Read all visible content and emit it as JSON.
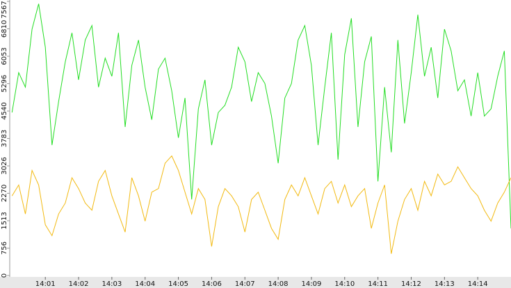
{
  "chart_data": {
    "type": "line",
    "x": [
      0,
      0.2,
      0.4,
      0.6,
      0.8,
      1,
      1.2,
      1.4,
      1.6,
      1.8,
      2,
      2.2,
      2.4,
      2.6,
      2.8,
      3,
      3.2,
      3.4,
      3.6,
      3.8,
      4,
      4.2,
      4.4,
      4.6,
      4.8,
      5,
      5.2,
      5.4,
      5.6,
      5.8,
      6,
      6.2,
      6.4,
      6.6,
      6.8,
      7,
      7.2,
      7.4,
      7.6,
      7.8,
      8,
      8.2,
      8.4,
      8.6,
      8.8,
      9,
      9.2,
      9.4,
      9.6,
      9.8,
      10,
      10.2,
      10.4,
      10.6,
      10.8,
      11,
      11.2,
      11.4,
      11.6,
      11.8,
      12,
      12.2,
      12.4,
      12.6,
      12.8,
      13,
      13.2,
      13.4,
      13.6,
      13.8,
      14,
      14.2,
      14.4,
      14.6,
      14.8,
      15
    ],
    "series": [
      {
        "color": "#22dd22",
        "values": [
          4500,
          5600,
          5200,
          6800,
          7500,
          6300,
          3600,
          4800,
          5900,
          6700,
          5400,
          6500,
          6900,
          5200,
          6000,
          5500,
          6700,
          4100,
          5800,
          6500,
          5200,
          4300,
          5700,
          6000,
          5100,
          3800,
          4900,
          2100,
          4600,
          5400,
          3600,
          4500,
          4700,
          5200,
          6300,
          5900,
          4800,
          5600,
          5300,
          4400,
          3100,
          4900,
          5300,
          6500,
          6900,
          5800,
          3600,
          5200,
          6700,
          3200,
          6100,
          7100,
          4100,
          5900,
          6600,
          2600,
          5200,
          3400,
          6500,
          4200,
          5600,
          7200,
          5500,
          6300,
          4900,
          6800,
          6200,
          5100,
          5400,
          4400,
          5600,
          4400,
          4600,
          5500,
          6200,
          1300
        ]
      },
      {
        "color": "#f2b90f",
        "values": [
          2200,
          2500,
          1700,
          2900,
          2500,
          1400,
          1100,
          1700,
          2000,
          2700,
          2400,
          2000,
          1800,
          2600,
          2900,
          2200,
          1700,
          1200,
          2700,
          2200,
          1500,
          2300,
          2400,
          3100,
          3300,
          2900,
          2300,
          1700,
          2400,
          2100,
          800,
          1900,
          2400,
          2200,
          1900,
          1200,
          2100,
          2300,
          1800,
          1300,
          1000,
          2100,
          2500,
          2200,
          2700,
          2200,
          1700,
          2400,
          2600,
          2000,
          2500,
          1900,
          2200,
          2400,
          1300,
          2000,
          2500,
          600,
          1500,
          2100,
          2400,
          1800,
          2600,
          2200,
          2800,
          2500,
          2600,
          3000,
          2700,
          2400,
          2200,
          1800,
          1500,
          2000,
          2300,
          2700
        ]
      }
    ],
    "xlim": [
      -0.07,
      15.0
    ],
    "xticks": [
      {
        "value": 1,
        "label": "14:01"
      },
      {
        "value": 2,
        "label": "14:02"
      },
      {
        "value": 3,
        "label": "14:03"
      },
      {
        "value": 4,
        "label": "14:04"
      },
      {
        "value": 5,
        "label": "14:05"
      },
      {
        "value": 6,
        "label": "14:06"
      },
      {
        "value": 7,
        "label": "14:07"
      },
      {
        "value": 8,
        "label": "14:08"
      },
      {
        "value": 9,
        "label": "14:09"
      },
      {
        "value": 10,
        "label": "14:10"
      },
      {
        "value": 11,
        "label": "14:11"
      },
      {
        "value": 12,
        "label": "14:12"
      },
      {
        "value": 13,
        "label": "14:13"
      },
      {
        "value": 14,
        "label": "14:14"
      }
    ],
    "ylim": [
      0,
      7567
    ],
    "yticks": [
      0,
      756,
      1513,
      2270,
      3026,
      3783,
      4540,
      5296,
      6053,
      6810,
      7567
    ]
  }
}
